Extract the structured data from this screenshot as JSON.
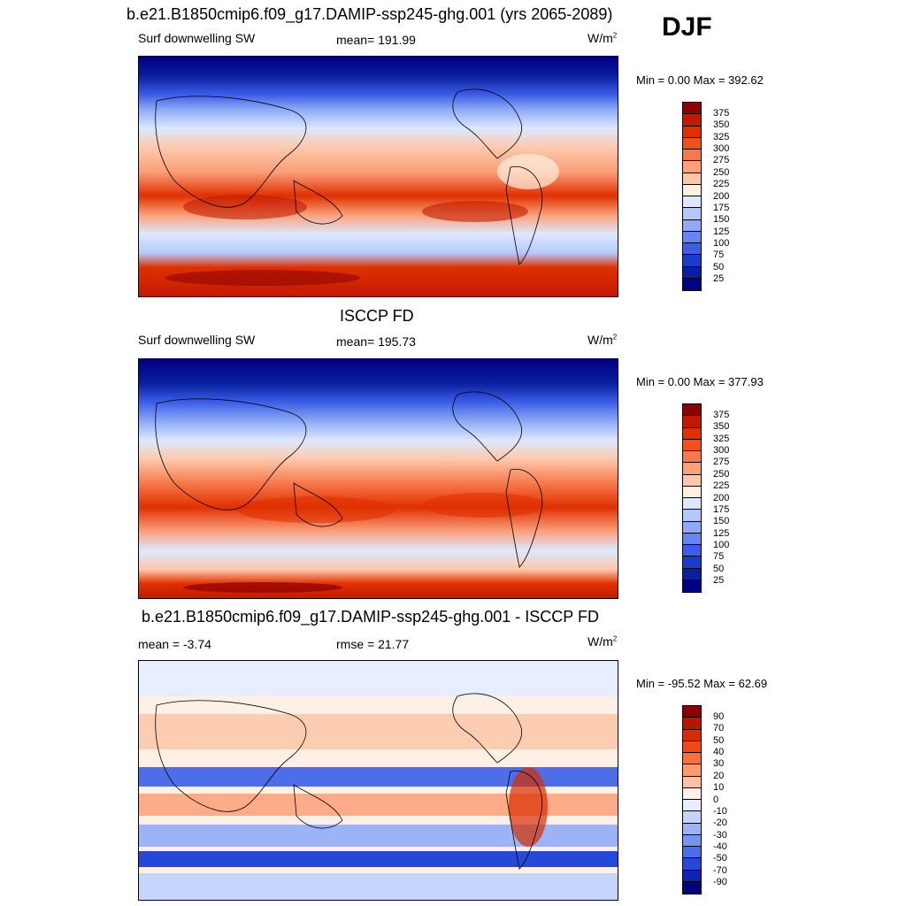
{
  "season": "DJF",
  "units_base": "W/m",
  "units_exp": "2",
  "panels": [
    {
      "title": "b.e21.B1850cmip6.f09_g17.DAMIP-ssp245-ghg.001 (yrs 2065-2089)",
      "left_label": "Surf downwelling SW",
      "center_label": "mean= 191.99",
      "minmax": "Min =   0.00 Max = 392.62",
      "colorbar": {
        "labels": [
          "375",
          "350",
          "325",
          "300",
          "275",
          "250",
          "225",
          "200",
          "175",
          "150",
          "125",
          "100",
          "75",
          "50",
          "25"
        ],
        "colors": [
          "#8b0000",
          "#c21a00",
          "#e03000",
          "#f0501a",
          "#f7784a",
          "#fba07a",
          "#fdc8aa",
          "#fff0e0",
          "#dde8ff",
          "#b4c8fa",
          "#8caaf5",
          "#6486f0",
          "#3c5ee6",
          "#1a3ccc",
          "#0a1ea0",
          "#000080"
        ]
      }
    },
    {
      "title": "ISCCP FD",
      "left_label": "Surf downwelling SW",
      "center_label": "mean= 195.73",
      "minmax": "Min =   0.00 Max = 377.93",
      "colorbar": {
        "labels": [
          "375",
          "350",
          "325",
          "300",
          "275",
          "250",
          "225",
          "200",
          "175",
          "150",
          "125",
          "100",
          "75",
          "50",
          "25"
        ],
        "colors": [
          "#8b0000",
          "#c21a00",
          "#e03000",
          "#f0501a",
          "#f7784a",
          "#fba07a",
          "#fdc8aa",
          "#fff0e0",
          "#dde8ff",
          "#b4c8fa",
          "#8caaf5",
          "#6486f0",
          "#3c5ee6",
          "#1a3ccc",
          "#0a1ea0",
          "#000080"
        ]
      }
    },
    {
      "title": "b.e21.B1850cmip6.f09_g17.DAMIP-ssp245-ghg.001 - ISCCP FD",
      "left_label": "mean =  -3.74",
      "center_label": "rmse =  21.77",
      "minmax": "Min = -95.52 Max =  62.69",
      "colorbar": {
        "labels": [
          "90",
          "70",
          "50",
          "40",
          "30",
          "20",
          "10",
          "0",
          "-10",
          "-20",
          "-30",
          "-40",
          "-50",
          "-70",
          "-90"
        ],
        "colors": [
          "#8b0000",
          "#b81400",
          "#d82c00",
          "#f04818",
          "#f87040",
          "#fc9a70",
          "#fdc4a4",
          "#fff0e6",
          "#e6eeff",
          "#c4d4fa",
          "#9cb4f5",
          "#7494f0",
          "#4c6ee8",
          "#2448d8",
          "#0c24b0",
          "#000080"
        ]
      }
    }
  ]
}
